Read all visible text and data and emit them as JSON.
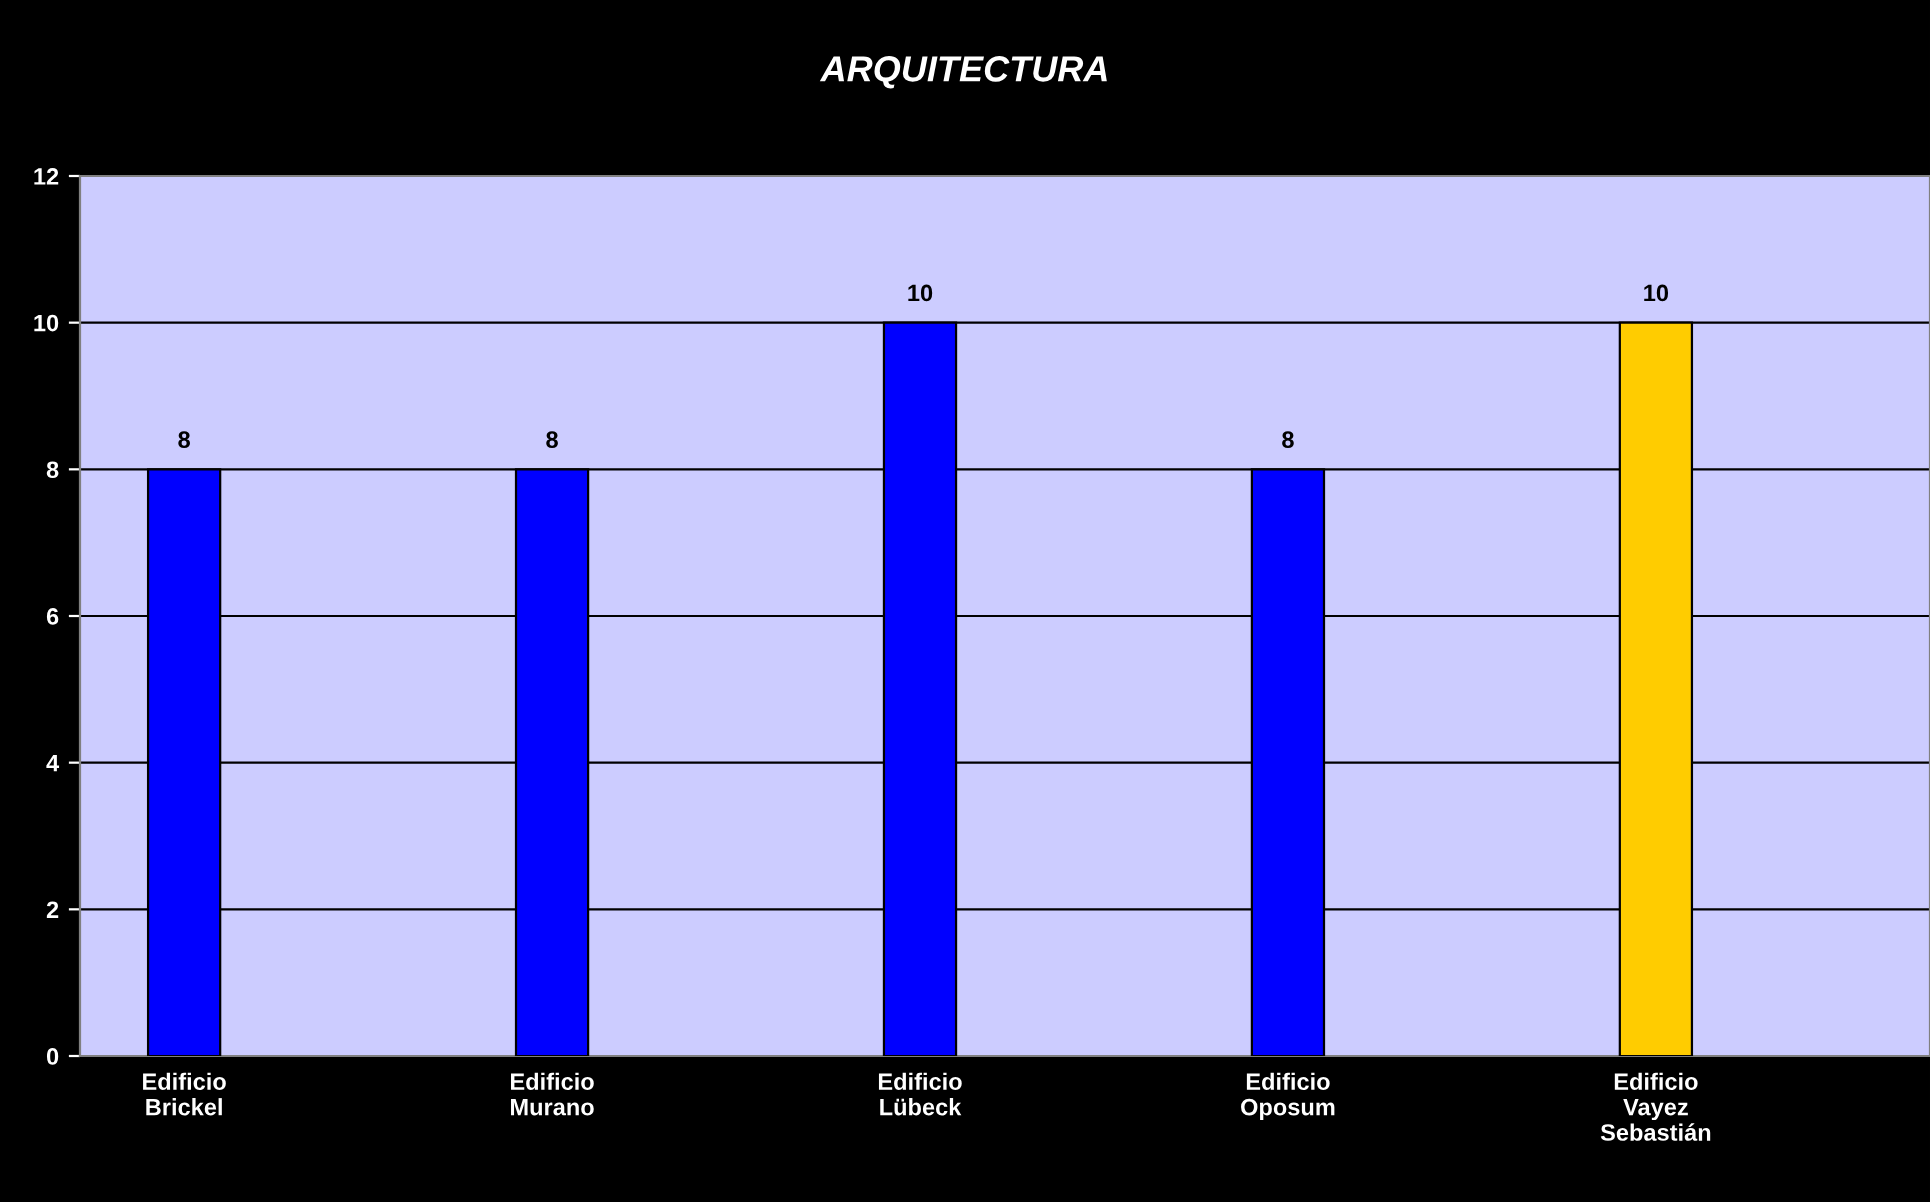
{
  "chart_data": {
    "type": "bar",
    "title": "ARQUITECTURA",
    "categories": [
      "Edificio\nBrickel",
      "Edificio\nMurano",
      "Edificio\nLübeck",
      "Edificio\nOposum",
      "Edificio\nVayez\nSebastián"
    ],
    "values": [
      8,
      8,
      10,
      8,
      10
    ],
    "colors": [
      "#0000ff",
      "#0000ff",
      "#0000ff",
      "#0000ff",
      "#ffcc00"
    ],
    "ylim": [
      0,
      12
    ],
    "yticks": [
      0,
      2,
      4,
      6,
      8,
      10,
      12
    ],
    "grid": "y",
    "data_labels": true,
    "legend": false
  }
}
